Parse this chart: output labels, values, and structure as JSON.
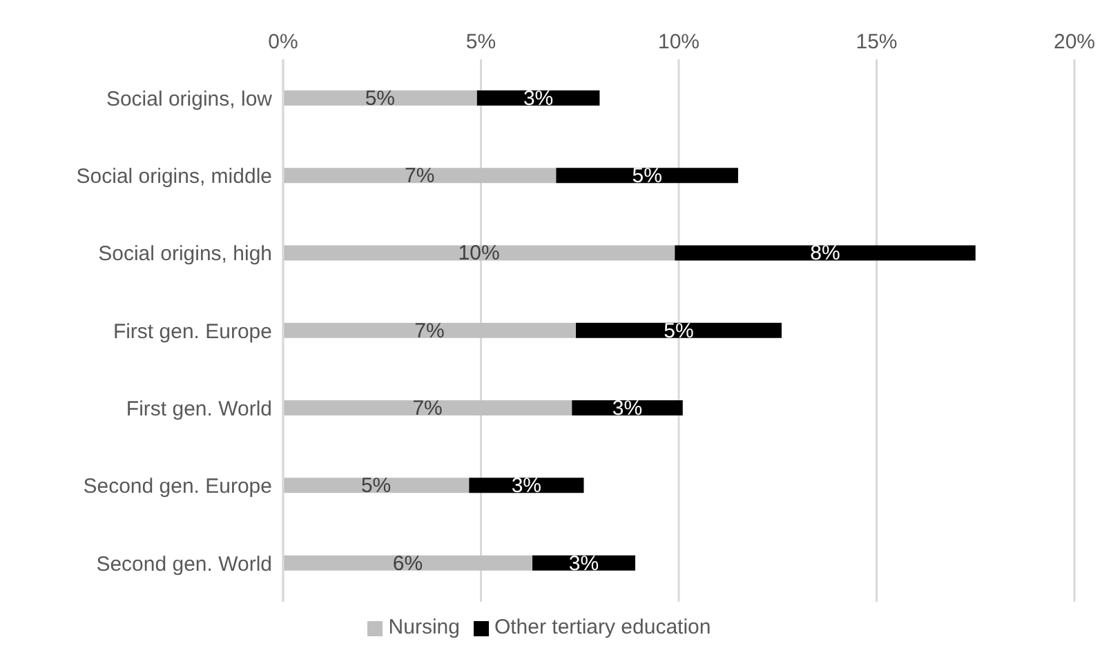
{
  "chart_data": {
    "type": "bar",
    "orientation": "horizontal",
    "stacked": true,
    "categories": [
      "Social origins, low",
      "Social origins, middle",
      "Social origins, high",
      "First gen. Europe",
      "First gen. World",
      "Second gen. Europe",
      "Second gen. World"
    ],
    "series": [
      {
        "name": "Nursing",
        "color": "#bfbfbf",
        "values": [
          4.9,
          6.9,
          9.9,
          7.4,
          7.3,
          4.7,
          6.3
        ],
        "value_labels": [
          "5%",
          "7%",
          "10%",
          "7%",
          "7%",
          "5%",
          "6%"
        ]
      },
      {
        "name": "Other tertiary education",
        "color": "#000000",
        "values": [
          3.1,
          4.6,
          7.6,
          5.2,
          2.8,
          2.9,
          2.6
        ],
        "value_labels": [
          "3%",
          "5%",
          "8%",
          "5%",
          "3%",
          "3%",
          "3%"
        ]
      }
    ],
    "xlim": [
      0,
      20
    ],
    "xticks": [
      {
        "value": 0,
        "label": "0%"
      },
      {
        "value": 5,
        "label": "5%"
      },
      {
        "value": 10,
        "label": "10%"
      },
      {
        "value": 15,
        "label": "15%"
      },
      {
        "value": 20,
        "label": "20%"
      }
    ],
    "grid": "x",
    "legend": "bottom"
  }
}
